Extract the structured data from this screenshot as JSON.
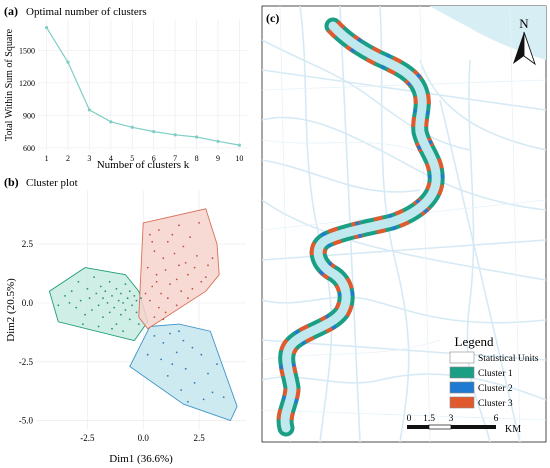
{
  "panels": {
    "a": {
      "tag": "(a)",
      "title": "Optimal number of clusters"
    },
    "b": {
      "tag": "(b)",
      "title": "Cluster plot"
    },
    "c": {
      "tag": "(c)"
    }
  },
  "chart_data": [
    {
      "id": "elbow",
      "type": "line",
      "title": "Optimal number of clusters",
      "xlabel": "Number of clusters k",
      "ylabel": "Total Within Sum of Square",
      "x": [
        1,
        2,
        3,
        4,
        5,
        6,
        7,
        8,
        9,
        10
      ],
      "y": [
        1710,
        1390,
        950,
        840,
        790,
        750,
        720,
        700,
        660,
        625
      ],
      "xticks": [
        "1",
        "2",
        "3",
        "4",
        "5",
        "6",
        "7",
        "8",
        "9",
        "10"
      ],
      "yticks": [
        600,
        900,
        1200,
        1500
      ],
      "xlim": [
        0.6,
        10.4
      ],
      "ylim": [
        580,
        1780
      ],
      "color": "#7fcfc5",
      "grid": true
    },
    {
      "id": "cluster-plot",
      "type": "scatter",
      "title": "Cluster plot",
      "xlabel": "Dim1 (36.6%)",
      "ylabel": "Dim2 (20.5%)",
      "xticks": [
        -2.5,
        0.0,
        2.5
      ],
      "xtick_labels": [
        "-2.5",
        "0.0",
        "2.5"
      ],
      "yticks": [
        -5.0,
        -2.5,
        0.0,
        2.5
      ],
      "ytick_labels": [
        "-5.0",
        "-2.5",
        "0.0",
        "2.5"
      ],
      "xlim": [
        -4.8,
        4.6
      ],
      "ylim": [
        -5.4,
        4.8
      ],
      "grid": true,
      "hulls": [
        {
          "cluster": 1,
          "fill": "#c7ebe2",
          "stroke": "#1f9e78",
          "points": [
            [
              -2.6,
              1.5
            ],
            [
              -0.8,
              1.2
            ],
            [
              -0.2,
              0.5
            ],
            [
              0.2,
              -0.8
            ],
            [
              -0.4,
              -1.6
            ],
            [
              -3.8,
              -0.8
            ],
            [
              -4.2,
              0.5
            ]
          ]
        },
        {
          "cluster": 2,
          "fill": "#c6e6ef",
          "stroke": "#3f95c9",
          "points": [
            [
              0.3,
              -1.0
            ],
            [
              1.6,
              -0.9
            ],
            [
              3.0,
              -1.2
            ],
            [
              4.2,
              -4.4
            ],
            [
              3.9,
              -5.0
            ],
            [
              1.8,
              -4.3
            ],
            [
              -0.6,
              -2.7
            ]
          ]
        },
        {
          "cluster": 3,
          "fill": "#f7d3cc",
          "stroke": "#d96f5a",
          "points": [
            [
              0.0,
              3.4
            ],
            [
              2.8,
              4.0
            ],
            [
              3.3,
              2.5
            ],
            [
              3.4,
              1.2
            ],
            [
              2.8,
              0.5
            ],
            [
              0.2,
              -1.1
            ],
            [
              -0.2,
              -0.6
            ]
          ]
        }
      ],
      "series": [
        {
          "cluster": 1,
          "color": "#2a8f7a",
          "points": [
            [
              -3.8,
              -0.1
            ],
            [
              -3.5,
              0.3
            ],
            [
              -3.2,
              0.5
            ],
            [
              -3.0,
              -0.2
            ],
            [
              -2.9,
              0.9
            ],
            [
              -2.8,
              0.1
            ],
            [
              -2.6,
              -0.5
            ],
            [
              -2.5,
              0.6
            ],
            [
              -2.4,
              0.2
            ],
            [
              -2.3,
              -0.3
            ],
            [
              -2.2,
              1.1
            ],
            [
              -2.1,
              0.4
            ],
            [
              -2.0,
              -0.1
            ],
            [
              -1.9,
              0.7
            ],
            [
              -1.8,
              0.2
            ],
            [
              -1.8,
              -0.6
            ],
            [
              -1.7,
              0.5
            ],
            [
              -1.6,
              0.0
            ],
            [
              -1.5,
              0.9
            ],
            [
              -1.5,
              -0.4
            ],
            [
              -1.4,
              0.3
            ],
            [
              -1.3,
              -0.2
            ],
            [
              -1.2,
              0.6
            ],
            [
              -1.2,
              -0.9
            ],
            [
              -1.1,
              0.1
            ],
            [
              -1.0,
              -0.5
            ],
            [
              -1.0,
              0.4
            ],
            [
              -0.9,
              0.0
            ],
            [
              -0.8,
              0.8
            ],
            [
              -0.8,
              -0.3
            ],
            [
              -0.7,
              0.2
            ],
            [
              -0.6,
              -0.7
            ],
            [
              -0.6,
              0.5
            ],
            [
              -0.5,
              -0.1
            ],
            [
              -0.4,
              0.3
            ],
            [
              -0.3,
              -0.4
            ],
            [
              -0.3,
              0.1
            ],
            [
              -0.2,
              -0.9
            ],
            [
              -0.1,
              0.2
            ],
            [
              -2.7,
              -0.9
            ],
            [
              -3.3,
              0.0
            ],
            [
              -2.0,
              -1.0
            ],
            [
              -1.4,
              -1.1
            ],
            [
              -0.9,
              -1.2
            ]
          ]
        },
        {
          "cluster": 2,
          "color": "#2f78b0",
          "points": [
            [
              0.5,
              -1.4
            ],
            [
              0.9,
              -1.7
            ],
            [
              1.2,
              -1.3
            ],
            [
              1.5,
              -2.1
            ],
            [
              1.8,
              -1.6
            ],
            [
              2.2,
              -1.9
            ],
            [
              1.3,
              -2.6
            ],
            [
              1.9,
              -2.8
            ],
            [
              2.6,
              -2.2
            ],
            [
              2.9,
              -3.0
            ],
            [
              1.1,
              -3.1
            ],
            [
              2.3,
              -3.4
            ],
            [
              3.1,
              -3.8
            ],
            [
              1.7,
              -3.7
            ],
            [
              2.7,
              -4.1
            ],
            [
              3.6,
              -4.0
            ],
            [
              2.0,
              -4.2
            ],
            [
              0.2,
              -2.2
            ],
            [
              0.8,
              -2.4
            ],
            [
              3.3,
              -2.6
            ],
            [
              1.6,
              -1.2
            ]
          ]
        },
        {
          "cluster": 3,
          "color": "#c1543d",
          "points": [
            [
              0.3,
              2.9
            ],
            [
              0.7,
              3.1
            ],
            [
              1.1,
              2.6
            ],
            [
              1.6,
              3.3
            ],
            [
              2.1,
              2.8
            ],
            [
              2.5,
              3.4
            ],
            [
              0.5,
              2.2
            ],
            [
              0.9,
              1.9
            ],
            [
              1.4,
              2.1
            ],
            [
              1.9,
              1.7
            ],
            [
              2.4,
              2.0
            ],
            [
              2.9,
              1.6
            ],
            [
              0.2,
              1.5
            ],
            [
              0.6,
              1.2
            ],
            [
              1.0,
              1.4
            ],
            [
              1.5,
              1.0
            ],
            [
              2.0,
              1.2
            ],
            [
              2.6,
              0.9
            ],
            [
              0.4,
              0.7
            ],
            [
              0.8,
              0.4
            ],
            [
              1.2,
              0.8
            ],
            [
              1.7,
              0.5
            ],
            [
              2.2,
              0.6
            ],
            [
              0.3,
              0.1
            ],
            [
              0.7,
              -0.2
            ],
            [
              1.1,
              0.2
            ],
            [
              1.5,
              -0.1
            ],
            [
              0.5,
              -0.6
            ],
            [
              1.0,
              -0.4
            ],
            [
              2.8,
              1.1
            ],
            [
              3.1,
              1.9
            ],
            [
              1.3,
              2.9
            ],
            [
              1.8,
              2.4
            ],
            [
              0.1,
              0.4
            ],
            [
              0.9,
              -0.7
            ],
            [
              2.3,
              1.5
            ],
            [
              0.4,
              2.6
            ],
            [
              1.6,
              1.6
            ],
            [
              2.0,
              0.2
            ],
            [
              0.6,
              0.9
            ]
          ]
        }
      ]
    }
  ],
  "map": {
    "north_label": "N",
    "legend_title": "Legend",
    "legend_items": [
      {
        "label": "Statistical Units",
        "color": "#ffffff"
      },
      {
        "label": "Cluster 1",
        "color": "#1a9e84"
      },
      {
        "label": "Cluster 2",
        "color": "#1f7bd1"
      },
      {
        "label": "Cluster 3",
        "color": "#e05a2e"
      }
    ],
    "scale_ticks": [
      "0",
      "1.5",
      "3",
      "6"
    ],
    "scale_unit": "KM",
    "river_color": "#bfe9ee",
    "road_color": "#cfe7f3"
  }
}
